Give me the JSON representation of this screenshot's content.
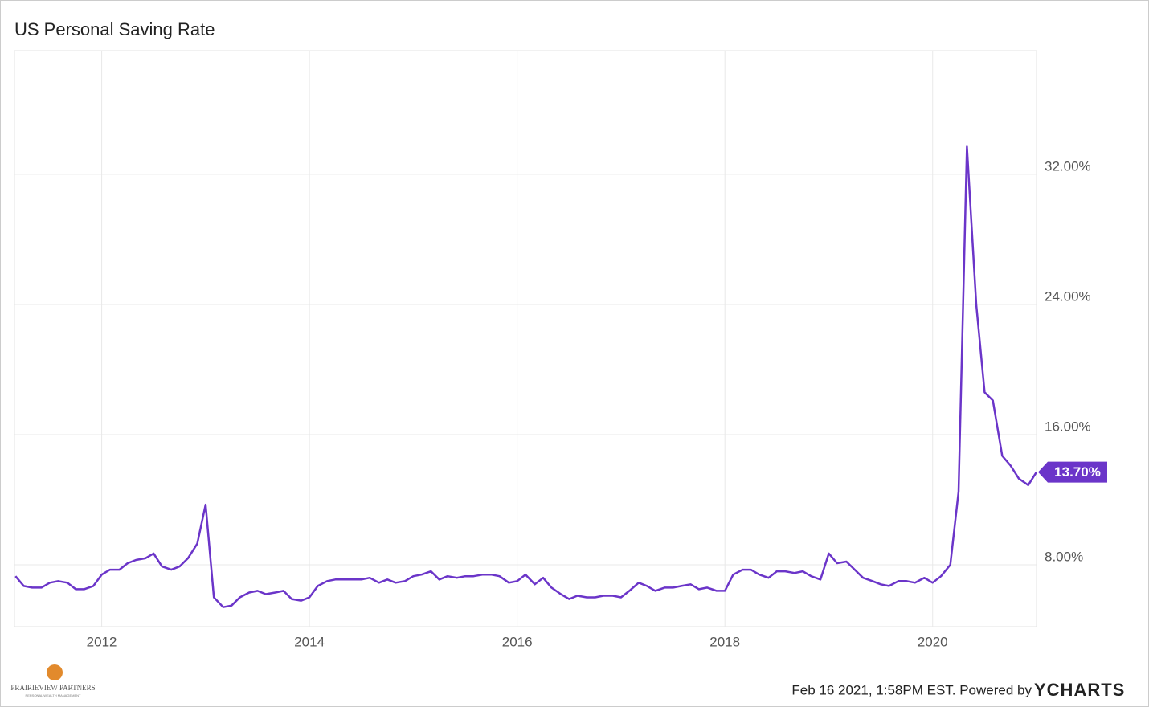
{
  "chart_data": {
    "type": "line",
    "title": "US Personal Saving Rate",
    "color": "#6b35c9",
    "x": [
      2011.17,
      2011.25,
      2011.33,
      2011.42,
      2011.5,
      2011.58,
      2011.67,
      2011.75,
      2011.83,
      2011.92,
      2012,
      2012.08,
      2012.17,
      2012.25,
      2012.33,
      2012.42,
      2012.5,
      2012.58,
      2012.67,
      2012.75,
      2012.83,
      2012.92,
      2013,
      2013.08,
      2013.17,
      2013.25,
      2013.33,
      2013.42,
      2013.5,
      2013.58,
      2013.67,
      2013.75,
      2013.83,
      2013.92,
      2014,
      2014.08,
      2014.17,
      2014.25,
      2014.33,
      2014.42,
      2014.5,
      2014.58,
      2014.67,
      2014.75,
      2014.83,
      2014.92,
      2015,
      2015.08,
      2015.17,
      2015.25,
      2015.33,
      2015.42,
      2015.5,
      2015.58,
      2015.67,
      2015.75,
      2015.83,
      2015.92,
      2016,
      2016.08,
      2016.17,
      2016.25,
      2016.33,
      2016.42,
      2016.5,
      2016.58,
      2016.67,
      2016.75,
      2016.83,
      2016.92,
      2017,
      2017.08,
      2017.17,
      2017.25,
      2017.33,
      2017.42,
      2017.5,
      2017.58,
      2017.67,
      2017.75,
      2017.83,
      2017.92,
      2018,
      2018.08,
      2018.17,
      2018.25,
      2018.33,
      2018.42,
      2018.5,
      2018.58,
      2018.67,
      2018.75,
      2018.83,
      2018.92,
      2019,
      2019.08,
      2019.17,
      2019.25,
      2019.33,
      2019.42,
      2019.5,
      2019.58,
      2019.67,
      2019.75,
      2019.83,
      2019.92,
      2020,
      2020.08,
      2020.17,
      2020.25,
      2020.33,
      2020.42,
      2020.5,
      2020.58,
      2020.67,
      2020.75,
      2020.83,
      2020.92,
      2021
    ],
    "values": [
      7.3,
      6.7,
      6.6,
      6.6,
      6.9,
      7.0,
      6.9,
      6.5,
      6.5,
      6.7,
      7.4,
      7.7,
      7.7,
      8.1,
      8.3,
      8.4,
      8.7,
      7.9,
      7.7,
      7.9,
      8.4,
      9.3,
      11.7,
      6.0,
      5.4,
      5.5,
      6.0,
      6.3,
      6.4,
      6.2,
      6.3,
      6.4,
      5.9,
      5.8,
      6.0,
      6.7,
      7.0,
      7.1,
      7.1,
      7.1,
      7.1,
      7.2,
      6.9,
      7.1,
      6.9,
      7.0,
      7.3,
      7.4,
      7.6,
      7.1,
      7.3,
      7.2,
      7.3,
      7.3,
      7.4,
      7.4,
      7.3,
      6.9,
      7.0,
      7.4,
      6.8,
      7.2,
      6.6,
      6.2,
      5.9,
      6.1,
      6.0,
      6.0,
      6.1,
      6.1,
      6.0,
      6.4,
      6.9,
      6.7,
      6.4,
      6.6,
      6.6,
      6.7,
      6.8,
      6.5,
      6.6,
      6.4,
      6.4,
      7.4,
      7.7,
      7.7,
      7.4,
      7.2,
      7.6,
      7.6,
      7.5,
      7.6,
      7.3,
      7.1,
      8.7,
      8.1,
      8.2,
      7.7,
      7.2,
      7.0,
      6.8,
      6.7,
      7.0,
      7.0,
      6.9,
      7.2,
      6.9,
      7.3,
      8.0,
      12.5,
      33.7,
      24.0,
      18.6,
      18.1,
      14.7,
      14.1,
      13.3,
      12.9,
      13.7
    ],
    "last_label": "13.70%",
    "xlim": [
      2011.16,
      2021.0
    ],
    "xticks": [
      2012,
      2014,
      2016,
      2018,
      2020
    ],
    "ylim": [
      4.2,
      39.6
    ],
    "yticks": [
      {
        "value": 8,
        "label": "8.00%"
      },
      {
        "value": 16,
        "label": "16.00%"
      },
      {
        "value": 24,
        "label": "24.00%"
      },
      {
        "value": 32,
        "label": "32.00%"
      }
    ],
    "grid": true
  },
  "footer": {
    "timestamp": "Feb 16 2021, 1:58PM EST. Powered by",
    "brand": "YCHARTS",
    "logo_name": "PRAIRIEVIEW PARTNERS",
    "logo_tagline": "PERSONAL WEALTH MANAGEMENT"
  }
}
